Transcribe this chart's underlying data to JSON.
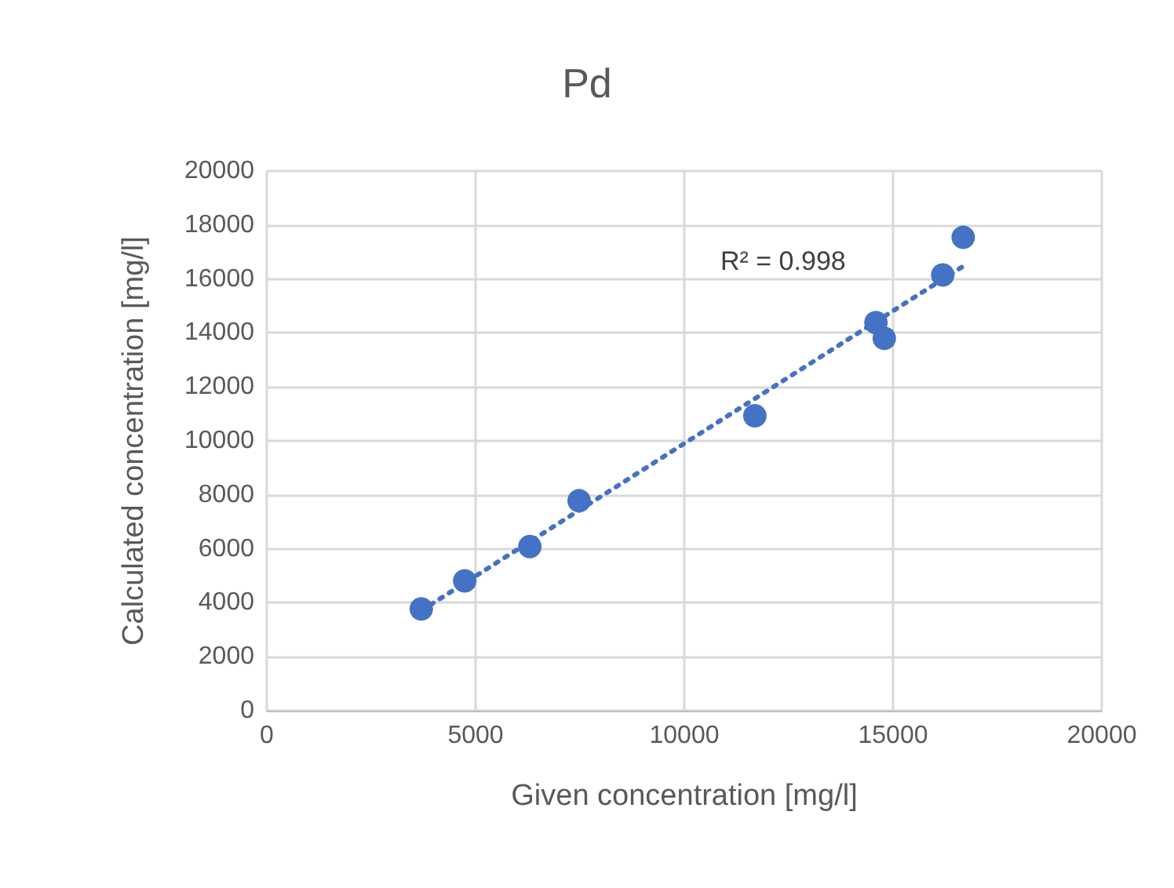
{
  "chart_data": {
    "type": "scatter",
    "title": "Pd",
    "xlabel": "Given concentration [mg/l]",
    "ylabel": "Calculated concentration [mg/l]",
    "annotations": [
      "R² = 0.998"
    ],
    "series": [
      {
        "color": "#4472c4",
        "x": [
          3700,
          4740,
          6300,
          7480,
          11690,
          14590,
          14790,
          16190,
          16680
        ],
        "values": [
          3770,
          4810,
          6080,
          7780,
          10930,
          14380,
          13800,
          16150,
          17540
        ]
      },
      {
        "type": "line",
        "color": "#4472c4",
        "line_style": "dotted",
        "marker": "none",
        "x": [
          3700,
          16680
        ],
        "values": [
          3710,
          16470
        ]
      }
    ],
    "xlim": [
      0,
      20000
    ],
    "xticks": [
      0,
      5000,
      10000,
      15000,
      20000
    ],
    "ylim": [
      0,
      20000
    ],
    "yticks": [
      0,
      2000,
      4000,
      6000,
      8000,
      10000,
      12000,
      14000,
      16000,
      18000,
      20000
    ],
    "grid": true,
    "marker": "circle"
  }
}
